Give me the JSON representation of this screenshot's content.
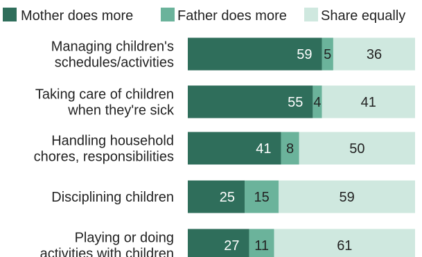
{
  "chart_data": {
    "type": "bar",
    "orientation": "horizontal",
    "stacked": true,
    "xlim": [
      0,
      100
    ],
    "grid": false,
    "legend_position": "top",
    "categories": [
      [
        "Managing children's",
        "schedules/activities"
      ],
      [
        "Taking care of children",
        "when they're sick"
      ],
      [
        "Handling household",
        "chores, responsibilities"
      ],
      [
        "Disciplining children"
      ],
      [
        "Playing or doing",
        "activities with children"
      ]
    ],
    "series": [
      {
        "name": "Mother does more",
        "color": "#2f6e5b",
        "values": [
          59,
          55,
          41,
          25,
          27
        ]
      },
      {
        "name": "Father does more",
        "color": "#6bb39b",
        "values": [
          5,
          4,
          8,
          15,
          11
        ]
      },
      {
        "name": "Share equally",
        "color": "#cfe8df",
        "values": [
          36,
          41,
          50,
          59,
          61
        ]
      }
    ]
  }
}
